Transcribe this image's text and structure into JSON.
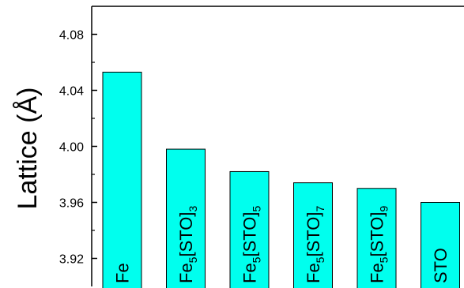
{
  "chart_data": {
    "type": "bar",
    "ylabel": "Lattice (Å)",
    "ylim": [
      3.9,
      4.1
    ],
    "yticks": [
      "3.92",
      "3.96",
      "4.00",
      "4.04",
      "4.08"
    ],
    "categories": [
      {
        "parts": [
          {
            "text": "Fe"
          }
        ]
      },
      {
        "parts": [
          {
            "text": "Fe"
          },
          {
            "text": "5",
            "sub": true
          },
          {
            "text": "[STO]"
          },
          {
            "text": "3",
            "sub": true
          }
        ]
      },
      {
        "parts": [
          {
            "text": "Fe"
          },
          {
            "text": "5",
            "sub": true
          },
          {
            "text": "[STO]"
          },
          {
            "text": "5",
            "sub": true
          }
        ]
      },
      {
        "parts": [
          {
            "text": "Fe"
          },
          {
            "text": "5",
            "sub": true
          },
          {
            "text": "[STO]"
          },
          {
            "text": "7",
            "sub": true
          }
        ]
      },
      {
        "parts": [
          {
            "text": "Fe"
          },
          {
            "text": "5",
            "sub": true
          },
          {
            "text": "[STO]"
          },
          {
            "text": "9",
            "sub": true
          }
        ]
      },
      {
        "parts": [
          {
            "text": "STO"
          }
        ]
      }
    ],
    "values": [
      4.053,
      3.998,
      3.982,
      3.974,
      3.97,
      3.96
    ],
    "bar_color": "#00ffee",
    "grid": false
  }
}
